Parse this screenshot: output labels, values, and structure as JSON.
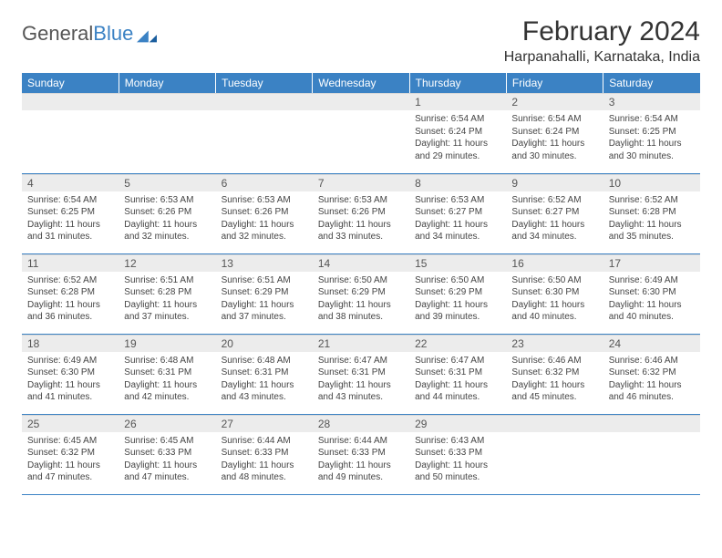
{
  "brand": {
    "part1": "General",
    "part2": "Blue"
  },
  "title": "February 2024",
  "location": "Harpanahalli, Karnataka, India",
  "colors": {
    "accent": "#3b82c4",
    "header_bg": "#3b82c4",
    "daynum_bg": "#ececec"
  },
  "weekdays": [
    "Sunday",
    "Monday",
    "Tuesday",
    "Wednesday",
    "Thursday",
    "Friday",
    "Saturday"
  ],
  "weeks": [
    [
      null,
      null,
      null,
      null,
      {
        "n": "1",
        "sr": "Sunrise: 6:54 AM",
        "ss": "Sunset: 6:24 PM",
        "d1": "Daylight: 11 hours",
        "d2": "and 29 minutes."
      },
      {
        "n": "2",
        "sr": "Sunrise: 6:54 AM",
        "ss": "Sunset: 6:24 PM",
        "d1": "Daylight: 11 hours",
        "d2": "and 30 minutes."
      },
      {
        "n": "3",
        "sr": "Sunrise: 6:54 AM",
        "ss": "Sunset: 6:25 PM",
        "d1": "Daylight: 11 hours",
        "d2": "and 30 minutes."
      }
    ],
    [
      {
        "n": "4",
        "sr": "Sunrise: 6:54 AM",
        "ss": "Sunset: 6:25 PM",
        "d1": "Daylight: 11 hours",
        "d2": "and 31 minutes."
      },
      {
        "n": "5",
        "sr": "Sunrise: 6:53 AM",
        "ss": "Sunset: 6:26 PM",
        "d1": "Daylight: 11 hours",
        "d2": "and 32 minutes."
      },
      {
        "n": "6",
        "sr": "Sunrise: 6:53 AM",
        "ss": "Sunset: 6:26 PM",
        "d1": "Daylight: 11 hours",
        "d2": "and 32 minutes."
      },
      {
        "n": "7",
        "sr": "Sunrise: 6:53 AM",
        "ss": "Sunset: 6:26 PM",
        "d1": "Daylight: 11 hours",
        "d2": "and 33 minutes."
      },
      {
        "n": "8",
        "sr": "Sunrise: 6:53 AM",
        "ss": "Sunset: 6:27 PM",
        "d1": "Daylight: 11 hours",
        "d2": "and 34 minutes."
      },
      {
        "n": "9",
        "sr": "Sunrise: 6:52 AM",
        "ss": "Sunset: 6:27 PM",
        "d1": "Daylight: 11 hours",
        "d2": "and 34 minutes."
      },
      {
        "n": "10",
        "sr": "Sunrise: 6:52 AM",
        "ss": "Sunset: 6:28 PM",
        "d1": "Daylight: 11 hours",
        "d2": "and 35 minutes."
      }
    ],
    [
      {
        "n": "11",
        "sr": "Sunrise: 6:52 AM",
        "ss": "Sunset: 6:28 PM",
        "d1": "Daylight: 11 hours",
        "d2": "and 36 minutes."
      },
      {
        "n": "12",
        "sr": "Sunrise: 6:51 AM",
        "ss": "Sunset: 6:28 PM",
        "d1": "Daylight: 11 hours",
        "d2": "and 37 minutes."
      },
      {
        "n": "13",
        "sr": "Sunrise: 6:51 AM",
        "ss": "Sunset: 6:29 PM",
        "d1": "Daylight: 11 hours",
        "d2": "and 37 minutes."
      },
      {
        "n": "14",
        "sr": "Sunrise: 6:50 AM",
        "ss": "Sunset: 6:29 PM",
        "d1": "Daylight: 11 hours",
        "d2": "and 38 minutes."
      },
      {
        "n": "15",
        "sr": "Sunrise: 6:50 AM",
        "ss": "Sunset: 6:29 PM",
        "d1": "Daylight: 11 hours",
        "d2": "and 39 minutes."
      },
      {
        "n": "16",
        "sr": "Sunrise: 6:50 AM",
        "ss": "Sunset: 6:30 PM",
        "d1": "Daylight: 11 hours",
        "d2": "and 40 minutes."
      },
      {
        "n": "17",
        "sr": "Sunrise: 6:49 AM",
        "ss": "Sunset: 6:30 PM",
        "d1": "Daylight: 11 hours",
        "d2": "and 40 minutes."
      }
    ],
    [
      {
        "n": "18",
        "sr": "Sunrise: 6:49 AM",
        "ss": "Sunset: 6:30 PM",
        "d1": "Daylight: 11 hours",
        "d2": "and 41 minutes."
      },
      {
        "n": "19",
        "sr": "Sunrise: 6:48 AM",
        "ss": "Sunset: 6:31 PM",
        "d1": "Daylight: 11 hours",
        "d2": "and 42 minutes."
      },
      {
        "n": "20",
        "sr": "Sunrise: 6:48 AM",
        "ss": "Sunset: 6:31 PM",
        "d1": "Daylight: 11 hours",
        "d2": "and 43 minutes."
      },
      {
        "n": "21",
        "sr": "Sunrise: 6:47 AM",
        "ss": "Sunset: 6:31 PM",
        "d1": "Daylight: 11 hours",
        "d2": "and 43 minutes."
      },
      {
        "n": "22",
        "sr": "Sunrise: 6:47 AM",
        "ss": "Sunset: 6:31 PM",
        "d1": "Daylight: 11 hours",
        "d2": "and 44 minutes."
      },
      {
        "n": "23",
        "sr": "Sunrise: 6:46 AM",
        "ss": "Sunset: 6:32 PM",
        "d1": "Daylight: 11 hours",
        "d2": "and 45 minutes."
      },
      {
        "n": "24",
        "sr": "Sunrise: 6:46 AM",
        "ss": "Sunset: 6:32 PM",
        "d1": "Daylight: 11 hours",
        "d2": "and 46 minutes."
      }
    ],
    [
      {
        "n": "25",
        "sr": "Sunrise: 6:45 AM",
        "ss": "Sunset: 6:32 PM",
        "d1": "Daylight: 11 hours",
        "d2": "and 47 minutes."
      },
      {
        "n": "26",
        "sr": "Sunrise: 6:45 AM",
        "ss": "Sunset: 6:33 PM",
        "d1": "Daylight: 11 hours",
        "d2": "and 47 minutes."
      },
      {
        "n": "27",
        "sr": "Sunrise: 6:44 AM",
        "ss": "Sunset: 6:33 PM",
        "d1": "Daylight: 11 hours",
        "d2": "and 48 minutes."
      },
      {
        "n": "28",
        "sr": "Sunrise: 6:44 AM",
        "ss": "Sunset: 6:33 PM",
        "d1": "Daylight: 11 hours",
        "d2": "and 49 minutes."
      },
      {
        "n": "29",
        "sr": "Sunrise: 6:43 AM",
        "ss": "Sunset: 6:33 PM",
        "d1": "Daylight: 11 hours",
        "d2": "and 50 minutes."
      },
      null,
      null
    ]
  ]
}
